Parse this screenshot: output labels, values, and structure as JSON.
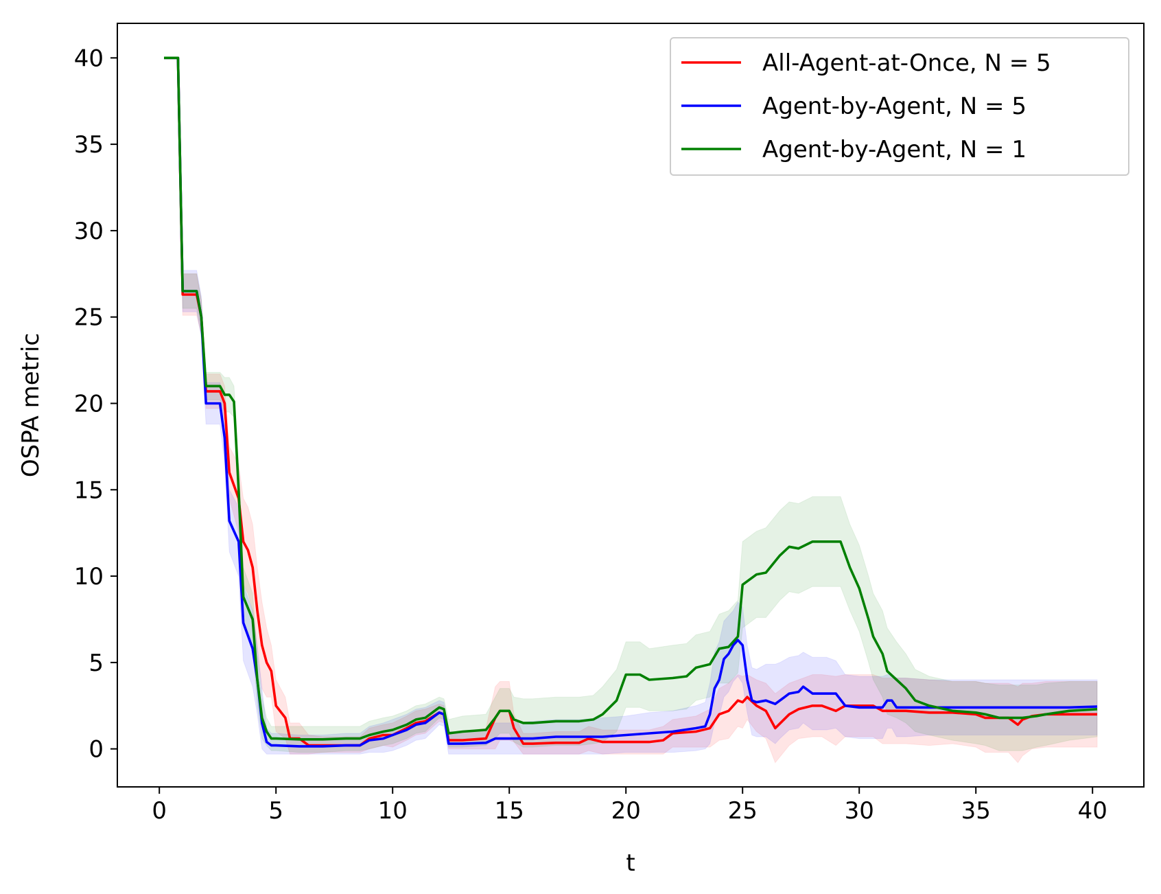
{
  "chart_data": {
    "type": "line",
    "title": "",
    "xlabel": "t",
    "ylabel": "OSPA metric",
    "xlim": [
      -1.8,
      42.2
    ],
    "ylim": [
      -2.2,
      42.0
    ],
    "xticks": [
      0,
      5,
      10,
      15,
      20,
      25,
      30,
      35,
      40
    ],
    "yticks": [
      0,
      5,
      10,
      15,
      20,
      25,
      30,
      35,
      40
    ],
    "grid": false,
    "legend_position": "top-right",
    "series": [
      {
        "name": "All-Agent-at-Once, N = 5",
        "color": "#ff0000",
        "x": [
          0.2,
          0.8,
          1.0,
          1.6,
          1.8,
          2.0,
          2.6,
          2.8,
          3.0,
          3.4,
          3.6,
          3.8,
          4.0,
          4.2,
          4.4,
          4.6,
          4.8,
          5.0,
          5.4,
          5.6,
          6.0,
          6.4,
          7.0,
          8.0,
          8.6,
          9.0,
          9.6,
          10.0,
          10.6,
          11.0,
          11.4,
          12.0,
          12.2,
          12.4,
          13.0,
          14.0,
          14.4,
          14.6,
          15.0,
          15.2,
          15.6,
          16.0,
          17.0,
          18.0,
          18.4,
          19.0,
          20.0,
          21.0,
          21.6,
          22.0,
          23.0,
          23.6,
          24.0,
          24.4,
          24.8,
          25.0,
          25.2,
          25.6,
          26.0,
          26.4,
          27.0,
          27.4,
          28.0,
          28.4,
          29.0,
          29.4,
          30.0,
          30.6,
          31.0,
          32.0,
          33.0,
          34.0,
          35.0,
          35.4,
          36.0,
          36.4,
          36.8,
          37.0,
          37.4,
          38.0,
          39.0,
          40.2
        ],
        "y": [
          40.0,
          40.0,
          26.3,
          26.3,
          25.0,
          20.7,
          20.7,
          20.0,
          16.0,
          14.5,
          12.0,
          11.5,
          10.5,
          8.0,
          6.0,
          5.0,
          4.5,
          2.5,
          1.8,
          0.6,
          0.6,
          0.2,
          0.2,
          0.2,
          0.2,
          0.6,
          0.8,
          0.8,
          1.2,
          1.5,
          1.6,
          2.1,
          2.0,
          0.5,
          0.5,
          0.6,
          1.8,
          2.2,
          2.2,
          1.2,
          0.3,
          0.3,
          0.35,
          0.35,
          0.6,
          0.4,
          0.4,
          0.4,
          0.5,
          0.9,
          1.0,
          1.2,
          2.0,
          2.2,
          2.8,
          2.7,
          3.0,
          2.5,
          2.2,
          1.2,
          2.0,
          2.3,
          2.5,
          2.5,
          2.2,
          2.5,
          2.5,
          2.5,
          2.2,
          2.2,
          2.1,
          2.1,
          2.0,
          1.8,
          1.8,
          1.8,
          1.4,
          1.7,
          1.9,
          2.0,
          2.0,
          2.0
        ],
        "band_upper": [
          40.0,
          40.0,
          27.5,
          27.5,
          26.0,
          21.7,
          21.7,
          21.0,
          17.5,
          16.5,
          14.5,
          14.0,
          13.0,
          10.5,
          8.5,
          7.0,
          6.0,
          4.0,
          3.0,
          1.5,
          1.5,
          0.8,
          0.7,
          0.7,
          0.7,
          1.2,
          1.4,
          1.5,
          1.9,
          2.2,
          2.3,
          2.6,
          2.5,
          1.0,
          1.0,
          1.2,
          3.6,
          3.9,
          3.9,
          2.0,
          0.9,
          0.9,
          1.0,
          1.0,
          1.3,
          1.1,
          1.1,
          1.1,
          1.3,
          1.7,
          1.9,
          2.3,
          3.5,
          3.8,
          4.3,
          4.2,
          4.3,
          4.0,
          3.8,
          3.2,
          3.8,
          4.0,
          4.3,
          4.3,
          4.2,
          4.3,
          4.3,
          4.3,
          4.1,
          4.1,
          4.0,
          3.9,
          3.9,
          3.8,
          3.8,
          3.8,
          3.6,
          3.8,
          3.8,
          3.9,
          3.9,
          3.9
        ],
        "band_lower": [
          40.0,
          40.0,
          25.1,
          25.1,
          24.0,
          19.7,
          19.7,
          19.0,
          14.5,
          12.5,
          9.5,
          9.0,
          8.0,
          5.5,
          3.5,
          3.0,
          3.0,
          1.0,
          0.6,
          -0.3,
          -0.3,
          -0.3,
          -0.2,
          -0.2,
          -0.2,
          0.0,
          0.2,
          0.1,
          0.5,
          0.8,
          0.9,
          1.6,
          1.5,
          0.0,
          0.0,
          0.0,
          0.0,
          0.5,
          0.5,
          0.4,
          -0.3,
          -0.3,
          -0.3,
          -0.3,
          -0.1,
          -0.3,
          -0.3,
          -0.3,
          -0.3,
          0.1,
          0.1,
          0.1,
          0.5,
          0.6,
          1.3,
          1.2,
          1.7,
          1.0,
          0.6,
          -0.8,
          0.2,
          0.6,
          0.7,
          0.7,
          0.2,
          0.7,
          0.7,
          0.7,
          0.3,
          0.3,
          0.2,
          0.3,
          0.1,
          -0.2,
          -0.2,
          -0.2,
          -0.8,
          -0.4,
          0.0,
          0.1,
          0.1,
          0.1
        ]
      },
      {
        "name": "Agent-by-Agent, N = 5",
        "color": "#0000ff",
        "x": [
          0.2,
          0.8,
          1.0,
          1.6,
          1.8,
          2.0,
          2.6,
          2.8,
          3.0,
          3.4,
          3.6,
          4.0,
          4.2,
          4.4,
          4.6,
          4.8,
          5.0,
          6.0,
          7.0,
          8.0,
          8.6,
          9.0,
          9.6,
          10.0,
          10.6,
          11.0,
          11.4,
          12.0,
          12.2,
          12.4,
          13.0,
          14.0,
          14.4,
          15.0,
          16.0,
          17.0,
          18.0,
          19.0,
          20.0,
          21.0,
          22.0,
          23.0,
          23.4,
          23.6,
          23.8,
          24.0,
          24.2,
          24.4,
          24.6,
          24.8,
          25.0,
          25.2,
          25.4,
          25.6,
          26.0,
          26.4,
          26.6,
          27.0,
          27.4,
          27.6,
          28.0,
          28.6,
          29.0,
          29.4,
          30.0,
          31.0,
          31.2,
          31.4,
          31.6,
          32.0,
          33.0,
          34.0,
          35.0,
          36.0,
          37.0,
          38.0,
          39.0,
          40.2
        ],
        "y": [
          40.0,
          40.0,
          26.5,
          26.5,
          25.0,
          20.0,
          20.0,
          18.0,
          13.2,
          12.0,
          7.3,
          5.8,
          4.0,
          1.5,
          0.4,
          0.2,
          0.2,
          0.15,
          0.15,
          0.2,
          0.2,
          0.5,
          0.6,
          0.8,
          1.1,
          1.4,
          1.5,
          2.1,
          2.0,
          0.3,
          0.3,
          0.35,
          0.6,
          0.6,
          0.6,
          0.7,
          0.7,
          0.7,
          0.8,
          0.9,
          1.0,
          1.2,
          1.3,
          2.0,
          3.5,
          4.0,
          5.2,
          5.5,
          6.0,
          6.3,
          6.0,
          4.0,
          2.8,
          2.7,
          2.8,
          2.6,
          2.8,
          3.2,
          3.3,
          3.6,
          3.2,
          3.2,
          3.2,
          2.5,
          2.4,
          2.4,
          2.8,
          2.8,
          2.4,
          2.4,
          2.4,
          2.4,
          2.4,
          2.4,
          2.4,
          2.4,
          2.4,
          2.45
        ],
        "band_upper": [
          40.0,
          40.0,
          27.7,
          27.7,
          26.2,
          21.2,
          21.2,
          19.5,
          15.0,
          14.0,
          9.5,
          8.0,
          6.0,
          3.5,
          1.2,
          0.9,
          0.9,
          0.8,
          0.8,
          0.9,
          0.9,
          1.3,
          1.5,
          1.7,
          2.0,
          2.3,
          2.4,
          2.8,
          2.7,
          1.0,
          1.0,
          1.1,
          1.5,
          1.5,
          1.6,
          1.7,
          1.7,
          1.8,
          1.9,
          2.1,
          2.2,
          2.5,
          2.7,
          3.8,
          5.6,
          6.2,
          7.4,
          7.7,
          8.0,
          8.5,
          8.2,
          6.0,
          4.7,
          4.6,
          4.9,
          4.9,
          5.0,
          5.3,
          5.4,
          5.6,
          5.3,
          5.3,
          5.1,
          4.3,
          4.2,
          4.2,
          4.3,
          4.3,
          4.1,
          4.1,
          4.0,
          4.0,
          4.0,
          4.0,
          4.0,
          4.0,
          4.0,
          4.0
        ],
        "band_lower": [
          40.0,
          40.0,
          25.3,
          25.3,
          23.8,
          18.8,
          18.8,
          16.5,
          11.4,
          10.0,
          5.1,
          3.6,
          2.0,
          0.0,
          -0.3,
          -0.3,
          -0.3,
          -0.3,
          -0.3,
          -0.3,
          -0.3,
          -0.2,
          -0.2,
          -0.1,
          0.2,
          0.5,
          0.6,
          1.4,
          1.3,
          -0.3,
          -0.3,
          -0.3,
          -0.3,
          -0.3,
          -0.3,
          -0.3,
          -0.3,
          -0.3,
          -0.2,
          -0.2,
          -0.2,
          -0.1,
          0.0,
          0.3,
          1.5,
          1.9,
          3.0,
          3.3,
          3.9,
          4.2,
          3.8,
          2.1,
          0.8,
          0.7,
          0.7,
          0.3,
          0.6,
          1.1,
          1.2,
          1.5,
          1.1,
          1.1,
          1.2,
          0.7,
          0.6,
          0.6,
          1.2,
          1.2,
          0.7,
          0.7,
          0.8,
          0.8,
          0.8,
          0.8,
          0.8,
          0.8,
          0.8,
          0.8
        ]
      },
      {
        "name": "Agent-by-Agent, N = 1",
        "color": "#008000",
        "x": [
          0.2,
          0.8,
          1.0,
          1.6,
          1.8,
          2.0,
          2.6,
          2.8,
          3.0,
          3.2,
          3.4,
          3.6,
          4.0,
          4.2,
          4.4,
          4.6,
          4.8,
          5.0,
          6.0,
          7.0,
          8.0,
          8.6,
          9.0,
          9.6,
          10.0,
          10.6,
          11.0,
          11.4,
          12.0,
          12.2,
          12.4,
          13.0,
          14.0,
          14.4,
          14.6,
          15.0,
          15.2,
          15.6,
          16.0,
          17.0,
          18.0,
          18.6,
          19.0,
          19.6,
          20.0,
          20.6,
          21.0,
          22.0,
          22.6,
          23.0,
          23.6,
          24.0,
          24.4,
          24.8,
          25.0,
          25.6,
          26.0,
          26.6,
          27.0,
          27.4,
          28.0,
          29.0,
          29.2,
          29.6,
          30.0,
          30.4,
          30.6,
          31.0,
          31.2,
          31.6,
          32.0,
          32.4,
          33.0,
          34.0,
          35.0,
          35.4,
          36.0,
          37.0,
          37.6,
          38.0,
          39.0,
          40.2
        ],
        "y": [
          40.0,
          40.0,
          26.5,
          26.5,
          25.0,
          21.0,
          21.0,
          20.5,
          20.5,
          20.1,
          15.0,
          8.8,
          7.5,
          4.0,
          1.8,
          1.0,
          0.6,
          0.6,
          0.55,
          0.55,
          0.6,
          0.6,
          0.8,
          1.0,
          1.1,
          1.4,
          1.7,
          1.8,
          2.4,
          2.3,
          0.9,
          1.0,
          1.1,
          1.8,
          2.2,
          2.2,
          1.7,
          1.5,
          1.5,
          1.6,
          1.6,
          1.7,
          2.0,
          2.8,
          4.3,
          4.3,
          4.0,
          4.1,
          4.2,
          4.7,
          4.9,
          5.8,
          5.9,
          6.5,
          9.5,
          10.1,
          10.2,
          11.2,
          11.7,
          11.6,
          12.0,
          12.0,
          12.0,
          10.5,
          9.3,
          7.5,
          6.5,
          5.5,
          4.5,
          4.0,
          3.5,
          2.8,
          2.5,
          2.2,
          2.1,
          2.0,
          1.8,
          1.8,
          1.9,
          2.0,
          2.2,
          2.3
        ],
        "band_upper": [
          40.0,
          40.0,
          27.5,
          27.5,
          26.0,
          21.8,
          21.8,
          21.5,
          21.5,
          21.0,
          16.5,
          10.5,
          9.0,
          5.5,
          3.0,
          1.8,
          1.3,
          1.3,
          1.3,
          1.3,
          1.3,
          1.3,
          1.6,
          1.8,
          1.9,
          2.2,
          2.5,
          2.6,
          3.0,
          2.9,
          1.7,
          1.9,
          2.0,
          3.0,
          3.5,
          3.5,
          3.0,
          2.9,
          2.9,
          3.0,
          3.0,
          3.1,
          3.6,
          4.6,
          6.2,
          6.2,
          5.8,
          6.0,
          6.1,
          6.6,
          6.8,
          7.8,
          8.0,
          8.6,
          12.0,
          12.6,
          12.8,
          13.8,
          14.3,
          14.2,
          14.6,
          14.6,
          14.6,
          13.0,
          11.8,
          10.0,
          9.0,
          8.0,
          7.0,
          6.2,
          5.5,
          4.6,
          4.2,
          3.9,
          3.9,
          3.8,
          3.7,
          3.7,
          3.7,
          3.8,
          3.9,
          3.9
        ],
        "band_lower": [
          40.0,
          40.0,
          25.5,
          25.5,
          24.0,
          20.2,
          20.2,
          19.5,
          19.5,
          19.2,
          13.5,
          7.1,
          6.0,
          2.5,
          0.6,
          0.2,
          -0.1,
          -0.1,
          -0.2,
          -0.2,
          -0.1,
          -0.1,
          0.0,
          0.2,
          0.3,
          0.6,
          0.9,
          1.0,
          1.8,
          1.7,
          0.1,
          0.1,
          0.2,
          0.6,
          0.9,
          0.9,
          0.4,
          0.1,
          0.1,
          0.2,
          0.2,
          0.3,
          0.4,
          1.0,
          2.4,
          2.4,
          2.2,
          2.2,
          2.3,
          2.8,
          3.0,
          3.8,
          3.8,
          4.4,
          7.0,
          7.6,
          7.6,
          8.6,
          9.1,
          9.0,
          9.4,
          9.4,
          9.4,
          8.0,
          6.8,
          5.0,
          4.0,
          3.0,
          2.0,
          1.8,
          1.5,
          1.0,
          0.8,
          0.5,
          0.3,
          0.2,
          -0.1,
          -0.1,
          0.1,
          0.2,
          0.5,
          0.7
        ]
      }
    ]
  }
}
